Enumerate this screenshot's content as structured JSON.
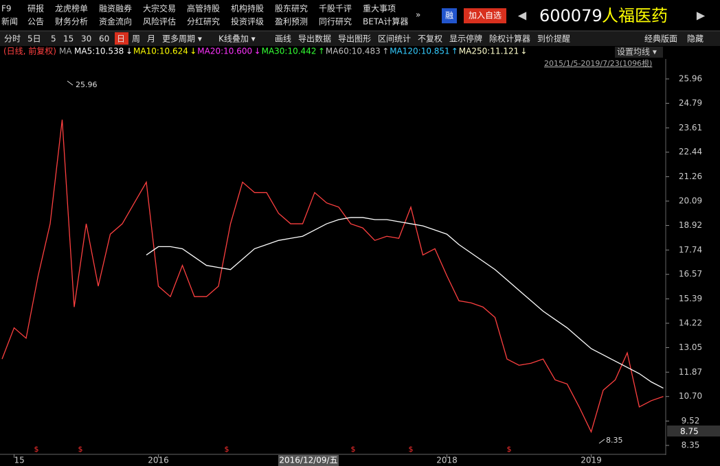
{
  "menu": {
    "row1": [
      "F9",
      "研报",
      "龙虎榜单",
      "融资融券",
      "大宗交易",
      "高管持股",
      "机构持股",
      "股东研究",
      "千股千评",
      "重大事项"
    ],
    "row2": [
      "新闻",
      "公告",
      "财务分析",
      "资金流向",
      "风险评估",
      "分红研究",
      "投资评级",
      "盈利预测",
      "同行研究",
      "BETA计算器"
    ],
    "more": "»"
  },
  "header": {
    "margin_badge": "融",
    "add_button": "加入自选",
    "prev": "◀",
    "code": "600079",
    "name": "人福医药",
    "next": "▶"
  },
  "tabs": {
    "left": [
      "分时",
      "5日",
      "5",
      "15",
      "30",
      "60",
      "日",
      "周",
      "月",
      "更多周期 ▾",
      "K线叠加 ▾",
      "画线",
      "导出数据",
      "导出图形",
      "区间统计",
      "不复权",
      "显示停牌",
      "除权计算器",
      "到价提醒"
    ],
    "active": "日",
    "right": [
      "经典版面",
      "隐藏"
    ]
  },
  "legend": {
    "mode": "(日线, 前复权)",
    "ma": "MA",
    "items": [
      {
        "label": "MA5:10.538",
        "arrow": "↓",
        "color": "#ffffff"
      },
      {
        "label": "MA10:10.624",
        "arrow": "↓",
        "color": "#ffff00"
      },
      {
        "label": "MA20:10.600",
        "arrow": "↓",
        "color": "#ff33ff"
      },
      {
        "label": "MA30:10.442",
        "arrow": "↑",
        "color": "#33ff33"
      },
      {
        "label": "MA60:10.483",
        "arrow": "↑",
        "color": "#c0c0c0"
      },
      {
        "label": "MA120:10.851",
        "arrow": "↑",
        "color": "#33ccff"
      },
      {
        "label": "MA250:11.121",
        "arrow": "↓",
        "color": "#ffffcc"
      }
    ],
    "settings": "设置均线 ▾",
    "range": "2015/1/5-2019/7/23(1096根)"
  },
  "chart_data": {
    "type": "line",
    "categories": [
      null,
      "15",
      null,
      null,
      null,
      null,
      null,
      null,
      null,
      null,
      null,
      null,
      null,
      "2016",
      null,
      null,
      null,
      null,
      null,
      null,
      null,
      null,
      null,
      null,
      null,
      null,
      null,
      null,
      null,
      null,
      null,
      null,
      null,
      null,
      null,
      null,
      null,
      "2018",
      null,
      null,
      null,
      null,
      null,
      null,
      null,
      null,
      null,
      null,
      null,
      "2019",
      null,
      null,
      null,
      null,
      null,
      null
    ],
    "series": [
      {
        "color": "#ff4040",
        "values": [
          12.5,
          14.0,
          13.5,
          16.5,
          19,
          24,
          15,
          19,
          16,
          18.5,
          19,
          20,
          21,
          16,
          15.5,
          17,
          15.5,
          15.5,
          16,
          19,
          21,
          20.5,
          20.5,
          19.5,
          19,
          19,
          20.5,
          20,
          19.8,
          19,
          18.8,
          18.2,
          18.4,
          18.3,
          19.8,
          17.5,
          17.8,
          16.5,
          15.3,
          15.2,
          15,
          14.5,
          12.5,
          12.2,
          12.3,
          12.5,
          11.5,
          11.3,
          10.2,
          9,
          11,
          11.5,
          12.8,
          10.2,
          10.5,
          10.7
        ]
      },
      {
        "color": "#ffffff",
        "values": [
          null,
          null,
          null,
          null,
          null,
          null,
          null,
          null,
          null,
          null,
          null,
          null,
          17.5,
          17.9,
          17.9,
          17.8,
          17.4,
          17.0,
          16.9,
          16.8,
          17.3,
          17.8,
          18.0,
          18.2,
          18.3,
          18.4,
          18.7,
          19.0,
          19.2,
          19.3,
          19.3,
          19.2,
          19.2,
          19.1,
          19.0,
          18.9,
          18.7,
          18.5,
          18.0,
          17.6,
          17.2,
          16.8,
          16.3,
          15.8,
          15.3,
          14.8,
          14.4,
          14.0,
          13.5,
          13.0,
          12.7,
          12.4,
          12.1,
          11.8,
          11.4,
          11.1
        ]
      }
    ],
    "ylim": [
      8.35,
      25.96
    ],
    "yticks": [
      25.96,
      24.79,
      23.61,
      22.44,
      21.26,
      20.09,
      18.92,
      17.74,
      16.57,
      15.39,
      14.22,
      13.05,
      11.87,
      {
        "value": 10.7,
        "label": "10.70"
      },
      9.52,
      8.35
    ],
    "annotations": {
      "high": "25.96",
      "low": "8.35",
      "last_price": "8.75",
      "crosshair_date": "2016/12/09/五",
      "dividend": "$"
    }
  }
}
